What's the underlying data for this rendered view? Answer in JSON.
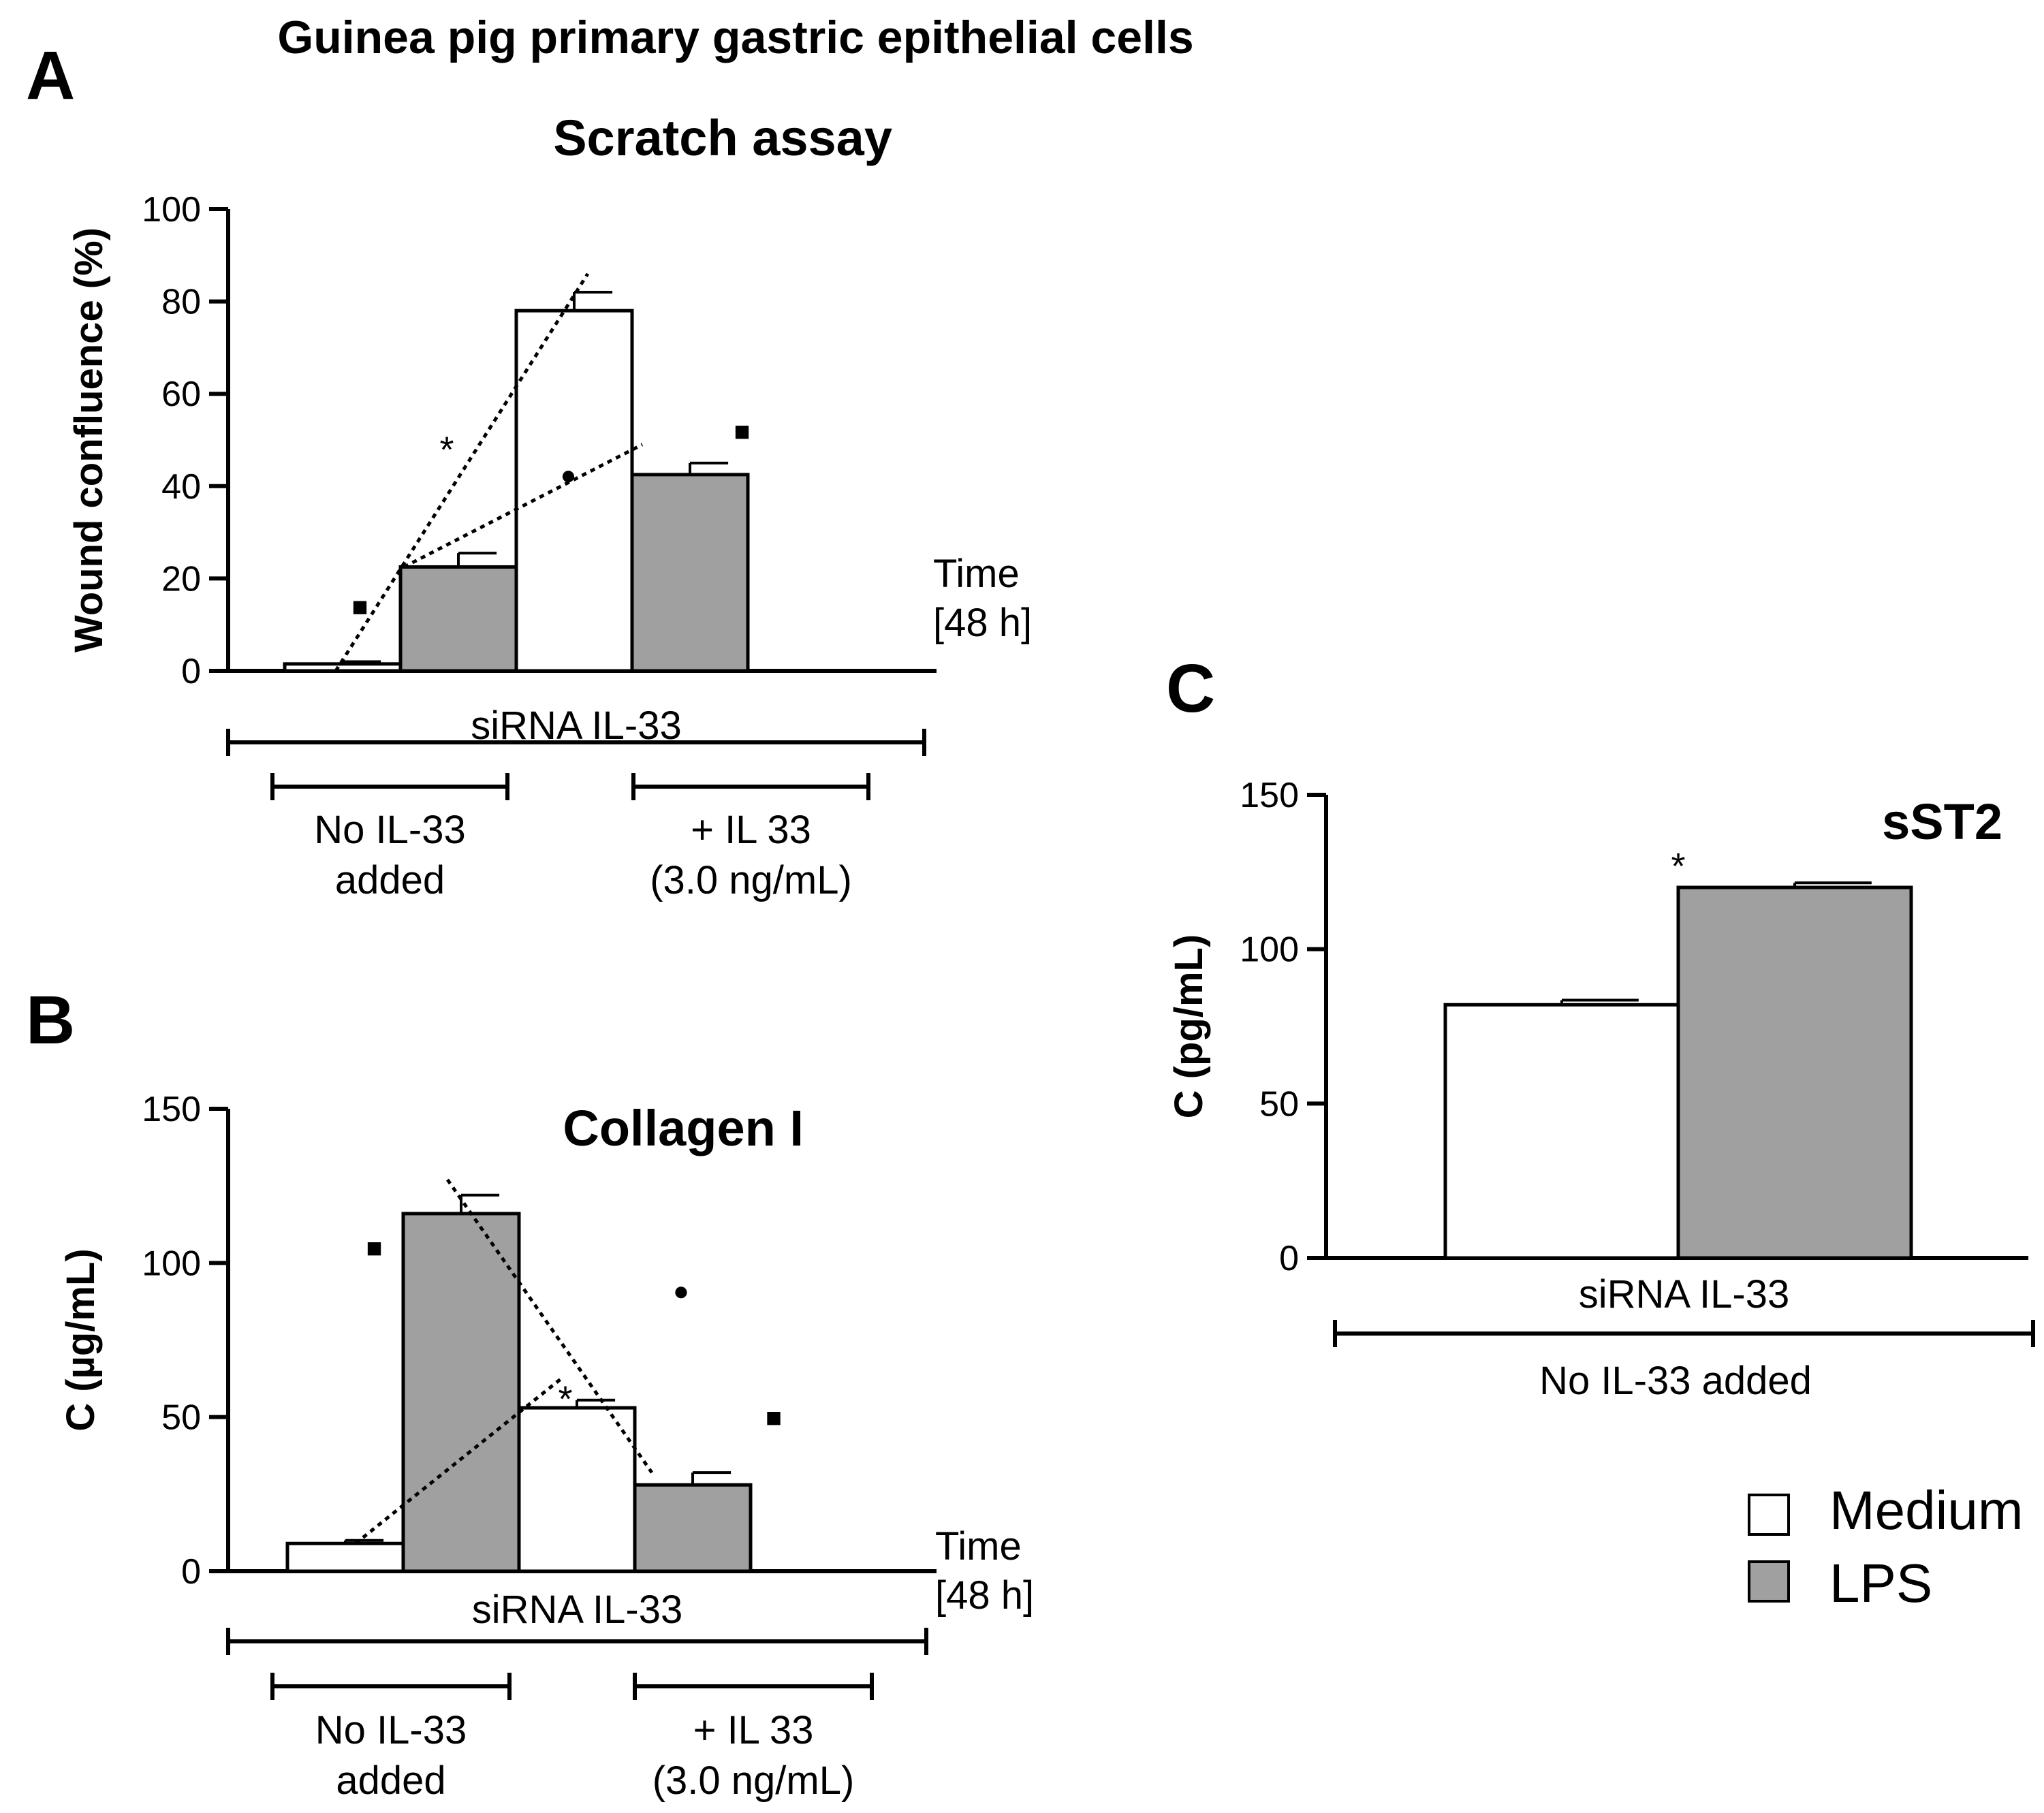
{
  "figure": {
    "title": "Guinea pig primary gastric epithelial cells",
    "legend": [
      {
        "label": "Medium",
        "color": "#ffffff"
      },
      {
        "label": "LPS",
        "color": "#a0a0a0"
      }
    ],
    "colors": {
      "medium": "#ffffff",
      "lps": "#a0a0a0",
      "axis": "#000000"
    }
  },
  "chart_data": [
    {
      "panel": "A",
      "type": "bar",
      "title": "Scratch assay",
      "ylabel": "Wound confluence (%)",
      "ylim": [
        0,
        100
      ],
      "yticks": [
        0,
        20,
        40,
        60,
        80,
        100
      ],
      "time_label": [
        "Time",
        "[48 h]"
      ],
      "group_label": "siRNA IL-33",
      "subgroups": [
        {
          "label": [
            "No IL-33",
            "added"
          ]
        },
        {
          "label": [
            "+ IL 33",
            "(3.0 ng/mL)"
          ]
        }
      ],
      "categories": [
        "No IL-33 added",
        "+ IL 33 (3.0 ng/mL)"
      ],
      "series": [
        {
          "name": "Medium",
          "values": [
            1.5,
            78
          ],
          "errors": [
            0.5,
            4
          ]
        },
        {
          "name": "LPS",
          "values": [
            22.5,
            42.5
          ],
          "errors": [
            3,
            2.5
          ]
        }
      ],
      "annotations": [
        {
          "symbol": "*",
          "x_slot": 1.4,
          "y": 48
        },
        {
          "symbol": "●",
          "x_slot": 2.45,
          "y": 42.5
        },
        {
          "symbol": "■",
          "x_slot": 0.65,
          "y": 14
        },
        {
          "symbol": "■",
          "x_slot": 3.95,
          "y": 52
        }
      ]
    },
    {
      "panel": "B",
      "type": "bar",
      "title": "Collagen I",
      "ylabel": "C (µg/mL)",
      "ylim": [
        0,
        150
      ],
      "yticks": [
        0,
        50,
        100,
        150
      ],
      "time_label": [
        "Time",
        "[48 h]"
      ],
      "group_label": "siRNA IL-33",
      "subgroups": [
        {
          "label": [
            "No IL-33",
            "added"
          ]
        },
        {
          "label": [
            "+ IL 33",
            "(3.0 ng/mL)"
          ]
        }
      ],
      "categories": [
        "No IL-33 added",
        "+ IL 33 (3.0 ng/mL)"
      ],
      "series": [
        {
          "name": "Medium",
          "values": [
            9,
            53
          ],
          "errors": [
            1,
            2.5
          ]
        },
        {
          "name": "LPS",
          "values": [
            116,
            28
          ],
          "errors": [
            6,
            4
          ]
        }
      ],
      "annotations": [
        {
          "symbol": "*",
          "x_slot": 2.4,
          "y": 56
        },
        {
          "symbol": "●",
          "x_slot": 3.4,
          "y": 91
        },
        {
          "symbol": "■",
          "x_slot": 0.75,
          "y": 105
        },
        {
          "symbol": "■",
          "x_slot": 4.2,
          "y": 50
        }
      ]
    },
    {
      "panel": "C",
      "type": "bar",
      "title": "sST2",
      "ylabel": "C (pg/mL)",
      "ylim": [
        0,
        150
      ],
      "yticks": [
        0,
        50,
        100,
        150
      ],
      "group_label": "siRNA IL-33",
      "subgroups": [
        {
          "label": [
            "No IL-33 added"
          ]
        }
      ],
      "categories": [
        "No IL-33 added"
      ],
      "series": [
        {
          "name": "Medium",
          "values": [
            82
          ],
          "errors": [
            1.5
          ]
        },
        {
          "name": "LPS",
          "values": [
            120
          ],
          "errors": [
            1.5
          ]
        }
      ],
      "annotations": [
        {
          "symbol": "*",
          "x_slot": 1.0,
          "y": 127
        }
      ]
    }
  ]
}
